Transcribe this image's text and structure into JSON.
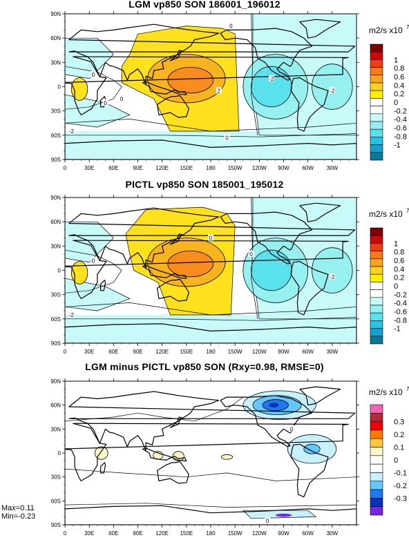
{
  "panels": [
    {
      "title": "LGM vp850 SON 186001_196012",
      "unit": "m2/s x10",
      "unit_exp": "7",
      "cb_labels": [
        "1",
        "0.8",
        "0.6",
        "0.4",
        "0.2",
        "0",
        "-0.2",
        "-0.4",
        "-0.6",
        "-0.8",
        "-1"
      ],
      "cb_colors": [
        "#7d0000",
        "#c80a0a",
        "#f03c14",
        "#f8781e",
        "#f8a51e",
        "#f8d21e",
        "#fff000",
        "#ffffff",
        "#ffffff",
        "#c8fafa",
        "#96f0f0",
        "#5ae1eb",
        "#28c3e1",
        "#14a0c8",
        "#0a7896"
      ],
      "contour_labels": [
        "0",
        "0",
        "-2",
        "2",
        "0",
        "-2",
        "0",
        "0",
        "-2"
      ]
    },
    {
      "title": "PICTL vp850 SON 185001_195012",
      "unit": "m2/s x10",
      "unit_exp": "7",
      "cb_labels": [
        "1",
        "0.8",
        "0.6",
        "0.4",
        "0.2",
        "0",
        "-0.2",
        "-0.4",
        "-0.6",
        "-0.8",
        "-1"
      ],
      "cb_colors": [
        "#7d0000",
        "#c80a0a",
        "#f03c14",
        "#f8781e",
        "#f8a51e",
        "#f8d21e",
        "#fff000",
        "#ffffff",
        "#ffffff",
        "#c8fafa",
        "#96f0f0",
        "#5ae1eb",
        "#28c3e1",
        "#14a0c8",
        "#0a7896"
      ],
      "contour_labels": [
        "0",
        "0",
        "-2",
        "0",
        "-2"
      ]
    },
    {
      "title": "LGM minus PICTL vp850 SON (Rxy=0.98, RMSE=0)",
      "unit": "m2/s x10",
      "unit_exp": "7",
      "cb_labels": [
        "0.3",
        "0.2",
        "0.1",
        "0",
        "-0.1",
        "-0.2",
        "-0.3"
      ],
      "cb_colors": [
        "#f064b4",
        "#b4283c",
        "#f00000",
        "#ff7800",
        "#ffc83c",
        "#fff5c8",
        "#ffffff",
        "#ffffff",
        "#c8f0ff",
        "#64c8ff",
        "#1e78f0",
        "#0a32b4",
        "#7828dc"
      ],
      "contour_labels": [
        "0",
        "0"
      ]
    }
  ],
  "lat_labels": [
    "90N",
    "60N",
    "30N",
    "0",
    "30S",
    "60S",
    "90S"
  ],
  "lon_labels": [
    "0",
    "30E",
    "60E",
    "90E",
    "120E",
    "150E",
    "180",
    "150W",
    "120W",
    "90W",
    "60W",
    "30W"
  ],
  "stats": {
    "max": "Max=0.11",
    "min": "Min=-0.23"
  },
  "colors": {
    "warm_fill": "#ffe11e",
    "warm_mid": "#f8b41e",
    "warm_core": "#f88c1e",
    "cool_light": "#c8fafa",
    "cool_mid": "#96f0f0",
    "cool_dark": "#5ae1eb",
    "diff_pos": "#fff5c8",
    "diff_neg_light": "#c8f0ff",
    "diff_neg_mid": "#64c8ff",
    "diff_neg_dark": "#1e78f0",
    "diff_neg_core": "#0a32b4",
    "diff_neg_extreme": "#7828dc"
  },
  "chart_data": [
    {
      "type": "heatmap",
      "title": "LGM vp850 SON 186001_196012",
      "xlabel": "",
      "ylabel": "",
      "x_ticks": [
        "0",
        "30E",
        "60E",
        "90E",
        "120E",
        "150E",
        "180",
        "150W",
        "120W",
        "90W",
        "60W",
        "30W"
      ],
      "y_ticks": [
        "90N",
        "60N",
        "30N",
        "0",
        "30S",
        "60S",
        "90S"
      ],
      "x_range": [
        0,
        360
      ],
      "y_range": [
        -90,
        90
      ],
      "colorbar": {
        "unit": "m2/s x10^7",
        "levels": [
          -1,
          -0.8,
          -0.6,
          -0.4,
          -0.2,
          0,
          0.2,
          0.4,
          0.6,
          0.8,
          1
        ]
      },
      "features": [
        {
          "sign": "positive",
          "center_lon": 150,
          "center_lat": 10,
          "approx_max": 0.5
        },
        {
          "sign": "positive",
          "center_lon": 15,
          "center_lat": -5,
          "approx_max": 0.3
        },
        {
          "sign": "negative",
          "center_lon": 255,
          "center_lat": 0,
          "approx_min": -0.6
        },
        {
          "sign": "negative",
          "center_lon": 330,
          "center_lat": 0,
          "approx_min": -0.4
        }
      ]
    },
    {
      "type": "heatmap",
      "title": "PICTL vp850 SON 185001_195012",
      "xlabel": "",
      "ylabel": "",
      "x_ticks": [
        "0",
        "30E",
        "60E",
        "90E",
        "120E",
        "150E",
        "180",
        "150W",
        "120W",
        "90W",
        "60W",
        "30W"
      ],
      "y_ticks": [
        "90N",
        "60N",
        "30N",
        "0",
        "30S",
        "60S",
        "90S"
      ],
      "x_range": [
        0,
        360
      ],
      "y_range": [
        -90,
        90
      ],
      "colorbar": {
        "unit": "m2/s x10^7",
        "levels": [
          -1,
          -0.8,
          -0.6,
          -0.4,
          -0.2,
          0,
          0.2,
          0.4,
          0.6,
          0.8,
          1
        ]
      },
      "features": [
        {
          "sign": "positive",
          "center_lon": 150,
          "center_lat": 5,
          "approx_max": 0.5
        },
        {
          "sign": "positive",
          "center_lon": 15,
          "center_lat": 0,
          "approx_max": 0.3
        },
        {
          "sign": "negative",
          "center_lon": 255,
          "center_lat": 0,
          "approx_min": -0.6
        },
        {
          "sign": "negative",
          "center_lon": 330,
          "center_lat": 0,
          "approx_min": -0.4
        }
      ]
    },
    {
      "type": "heatmap",
      "title": "LGM minus PICTL vp850 SON (Rxy=0.98, RMSE=0)",
      "xlabel": "",
      "ylabel": "",
      "x_ticks": [
        "0",
        "30E",
        "60E",
        "90E",
        "120E",
        "150E",
        "180",
        "150W",
        "120W",
        "90W",
        "60W",
        "30W"
      ],
      "y_ticks": [
        "90N",
        "60N",
        "30N",
        "0",
        "30S",
        "60S",
        "90S"
      ],
      "x_range": [
        0,
        360
      ],
      "y_range": [
        -90,
        90
      ],
      "colorbar": {
        "unit": "m2/s x10^7",
        "levels": [
          -0.3,
          -0.2,
          -0.1,
          0,
          0.1,
          0.2,
          0.3
        ]
      },
      "max": 0.11,
      "min": -0.23,
      "features": [
        {
          "sign": "negative",
          "center_lon": 260,
          "center_lat": 60,
          "approx_min": -0.23
        },
        {
          "sign": "negative",
          "center_lon": 300,
          "center_lat": 5,
          "approx_min": -0.15
        },
        {
          "sign": "positive",
          "center_lon": 45,
          "center_lat": 0,
          "approx_max": 0.05
        },
        {
          "sign": "positive",
          "center_lon": 115,
          "center_lat": -5,
          "approx_max": 0.08
        }
      ]
    }
  ]
}
